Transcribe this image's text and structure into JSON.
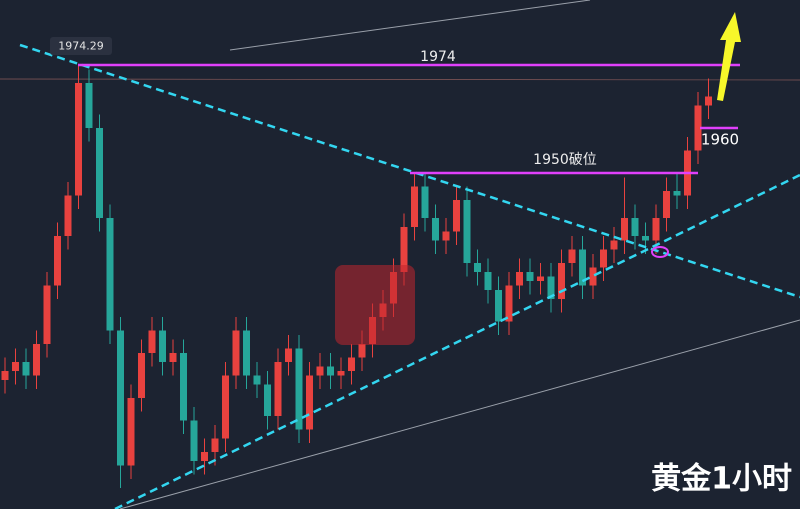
{
  "chart_data": {
    "type": "candlestick",
    "title": "黄金1小时",
    "open": [
      1904,
      1906,
      1908,
      1905,
      1912,
      1925,
      1936,
      1945,
      1970,
      1960,
      1940,
      1915,
      1885,
      1900,
      1910,
      1915,
      1908,
      1910,
      1895,
      1886,
      1888,
      1891,
      1905,
      1915,
      1905,
      1903,
      1896,
      1908,
      1911,
      1893,
      1905,
      1907,
      1905,
      1906,
      1909,
      1912,
      1918,
      1921,
      1928,
      1938,
      1947,
      1940,
      1935,
      1937,
      1944,
      1930,
      1928,
      1924,
      1917,
      1925,
      1928,
      1926,
      1927,
      1922,
      1930,
      1933,
      1925,
      1929,
      1933,
      1935,
      1940,
      1936,
      1935,
      1940,
      1946,
      1945,
      1955,
      1965
    ],
    "high": [
      1909,
      1911,
      1911,
      1915,
      1928,
      1939,
      1948,
      1974.29,
      1973,
      1963,
      1943,
      1918,
      1903,
      1913,
      1918,
      1918,
      1913,
      1913,
      1898,
      1891,
      1894,
      1908,
      1918,
      1918,
      1908,
      1906,
      1911,
      1914,
      1914,
      1908,
      1910,
      1910,
      1909,
      1912,
      1915,
      1921,
      1924,
      1931,
      1941,
      1950,
      1950,
      1943,
      1940,
      1947,
      1947,
      1933,
      1931,
      1927,
      1928,
      1931,
      1931,
      1930,
      1930,
      1933,
      1936,
      1936,
      1932,
      1936,
      1938,
      1949,
      1943,
      1939,
      1943,
      1949,
      1950,
      1958,
      1968,
      1971
    ],
    "low": [
      1901,
      1903,
      1902,
      1902,
      1909,
      1922,
      1933,
      1942,
      1957,
      1937,
      1912,
      1880,
      1882,
      1897,
      1907,
      1905,
      1905,
      1892,
      1883,
      1883,
      1885,
      1888,
      1902,
      1902,
      1900,
      1893,
      1893,
      1905,
      1890,
      1890,
      1902,
      1902,
      1902,
      1903,
      1906,
      1909,
      1915,
      1918,
      1925,
      1935,
      1937,
      1932,
      1932,
      1934,
      1927,
      1925,
      1921,
      1914,
      1914,
      1922,
      1923,
      1923,
      1919,
      1919,
      1927,
      1922,
      1922,
      1926,
      1930,
      1932,
      1933,
      1932,
      1932,
      1937,
      1942,
      1942,
      1952,
      1962
    ],
    "close": [
      1906,
      1908,
      1905,
      1912,
      1925,
      1936,
      1945,
      1970,
      1960,
      1940,
      1915,
      1885,
      1900,
      1910,
      1915,
      1908,
      1910,
      1895,
      1886,
      1888,
      1891,
      1905,
      1915,
      1905,
      1903,
      1896,
      1908,
      1911,
      1893,
      1905,
      1907,
      1905,
      1906,
      1909,
      1912,
      1918,
      1921,
      1928,
      1938,
      1947,
      1940,
      1935,
      1937,
      1944,
      1930,
      1928,
      1924,
      1917,
      1925,
      1928,
      1926,
      1927,
      1922,
      1930,
      1933,
      1925,
      1929,
      1933,
      1935,
      1940,
      1936,
      1935,
      1940,
      1946,
      1945,
      1955,
      1965,
      1967
    ],
    "ylim": [
      1873,
      1987
    ],
    "up_color": "#e8423f",
    "down_color": "#26a69a",
    "levels": [
      {
        "value": 1974,
        "label": "1974"
      },
      {
        "value": 1950,
        "label": "1950破位"
      },
      {
        "value": 1960,
        "label": "1960"
      }
    ],
    "level_color": "#e040fb"
  }
}
